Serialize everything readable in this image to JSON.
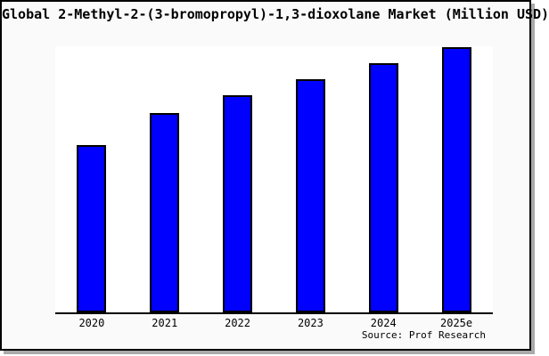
{
  "window": {
    "background_color": "#fafafa",
    "plot_background_color": "#ffffff",
    "frame_border_color": "#000000",
    "shadow_color": "#aaaaaa"
  },
  "chart_data": {
    "type": "bar",
    "title": "Global 2-Methyl-2-(3-bromopropyl)-1,3-dioxolane Market (Million USD)",
    "categories": [
      "2020",
      "2021",
      "2022",
      "2023",
      "2024",
      "2025e"
    ],
    "values_relative_pct_of_max": [
      63,
      75,
      82,
      88,
      94,
      100
    ],
    "xlabel": "",
    "ylabel": "",
    "y_axis_tick_labels": "none-visible",
    "gridlines": false,
    "legend": "none",
    "bar_color": "#0000ff",
    "bar_border_color": "#000000",
    "source": "Source: Prof Research"
  }
}
